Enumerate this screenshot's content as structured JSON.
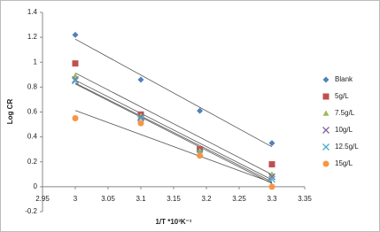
{
  "chart_data": {
    "type": "scatter",
    "x_label": "1/T *10³K⁻¹",
    "y_label": "Log CR",
    "x": [
      3,
      3.1,
      3.19,
      3.3
    ],
    "series": [
      {
        "name": "Blank",
        "color": "#4f81bd",
        "marker": "diamond",
        "values": [
          1.22,
          0.86,
          0.61,
          0.35
        ]
      },
      {
        "name": "5g/L",
        "color": "#c0504d",
        "marker": "square",
        "values": [
          0.99,
          0.58,
          0.3,
          0.18
        ]
      },
      {
        "name": "7.5g/L",
        "color": "#9bbb59",
        "marker": "triangle",
        "values": [
          0.89,
          0.57,
          0.29,
          0.1
        ]
      },
      {
        "name": "10g/L",
        "color": "#8064a2",
        "marker": "x",
        "values": [
          0.86,
          0.56,
          0.27,
          0.08
        ]
      },
      {
        "name": "12.5g/L",
        "color": "#4bacc6",
        "marker": "x",
        "values": [
          0.85,
          0.55,
          0.27,
          0.06
        ]
      },
      {
        "name": "15g/L",
        "color": "#f79646",
        "marker": "circle",
        "values": [
          0.55,
          0.51,
          0.25,
          0.0
        ]
      }
    ],
    "trendline": true,
    "xlim": [
      2.95,
      3.35
    ],
    "xticks": [
      2.95,
      3,
      3.05,
      3.1,
      3.15,
      3.2,
      3.25,
      3.3,
      3.35
    ],
    "ylim": [
      -0.2,
      1.4
    ],
    "yticks": [
      -0.2,
      0,
      0.2,
      0.4,
      0.6,
      0.8,
      1,
      1.2,
      1.4
    ],
    "grid": false,
    "legend": "right"
  }
}
